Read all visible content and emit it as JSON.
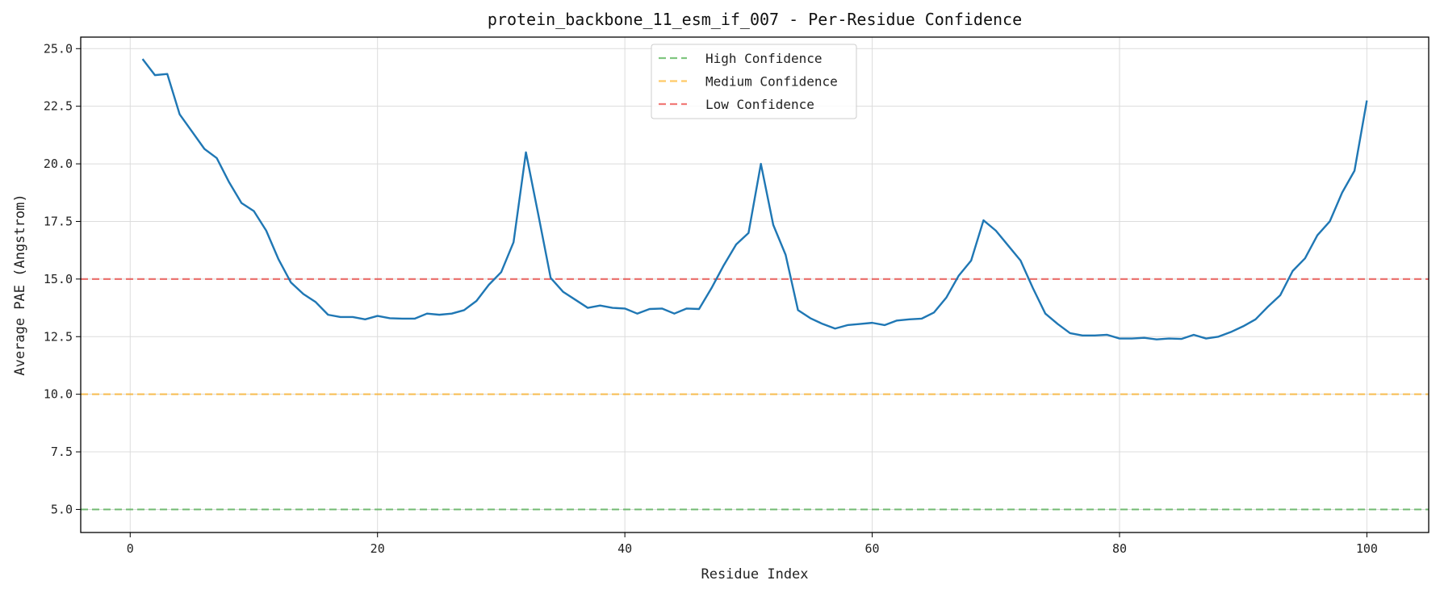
{
  "chart_data": {
    "type": "line",
    "title": "protein_backbone_11_esm_if_007 - Per-Residue Confidence",
    "xlabel": "Residue Index",
    "ylabel": "Average PAE (Angstrom)",
    "xlim": [
      -4,
      105
    ],
    "ylim": [
      4.0,
      25.5
    ],
    "xticks": [
      0,
      20,
      40,
      60,
      80,
      100
    ],
    "xtick_labels": [
      "0",
      "20",
      "40",
      "60",
      "80",
      "100"
    ],
    "yticks": [
      5.0,
      7.5,
      10.0,
      12.5,
      15.0,
      17.5,
      20.0,
      22.5,
      25.0
    ],
    "ytick_labels": [
      "5.0",
      "7.5",
      "10.0",
      "12.5",
      "15.0",
      "17.5",
      "20.0",
      "22.5",
      "25.0"
    ],
    "grid": true,
    "legend_position": "top-center",
    "series": [
      {
        "color": "#1f77b4",
        "x": [
          1,
          2,
          3,
          4,
          5,
          6,
          7,
          8,
          9,
          10,
          11,
          12,
          13,
          14,
          15,
          16,
          17,
          18,
          19,
          20,
          21,
          22,
          23,
          24,
          25,
          26,
          27,
          28,
          29,
          30,
          31,
          32,
          33,
          34,
          35,
          36,
          37,
          38,
          39,
          40,
          41,
          42,
          43,
          44,
          45,
          46,
          47,
          48,
          49,
          50,
          51,
          52,
          53,
          54,
          55,
          56,
          57,
          58,
          59,
          60,
          61,
          62,
          63,
          64,
          65,
          66,
          67,
          68,
          69,
          70,
          71,
          72,
          73,
          74,
          75,
          76,
          77,
          78,
          79,
          80,
          81,
          82,
          83,
          84,
          85,
          86,
          87,
          88,
          89,
          90,
          91,
          92,
          93,
          94,
          95,
          96,
          97,
          98,
          99,
          100
        ],
        "y": [
          24.55,
          23.85,
          23.9,
          22.15,
          21.4,
          20.65,
          20.25,
          19.2,
          18.3,
          17.95,
          17.1,
          15.85,
          14.85,
          14.35,
          14.0,
          13.45,
          13.35,
          13.35,
          13.25,
          13.4,
          13.3,
          13.28,
          13.28,
          13.5,
          13.45,
          13.5,
          13.65,
          14.05,
          14.75,
          15.3,
          16.6,
          20.5,
          17.8,
          15.05,
          14.45,
          14.1,
          13.75,
          13.85,
          13.75,
          13.72,
          13.5,
          13.7,
          13.72,
          13.5,
          13.72,
          13.7,
          14.6,
          15.6,
          16.5,
          17.0,
          20.0,
          17.35,
          16.05,
          13.65,
          13.3,
          13.05,
          12.85,
          13.0,
          13.05,
          13.1,
          13.0,
          13.2,
          13.25,
          13.28,
          13.55,
          14.2,
          15.15,
          15.8,
          17.55,
          17.1,
          16.45,
          15.8,
          14.6,
          13.5,
          13.05,
          12.65,
          12.55,
          12.55,
          12.58,
          12.42,
          12.42,
          12.45,
          12.38,
          12.42,
          12.4,
          12.58,
          12.42,
          12.5,
          12.7,
          12.95,
          13.25,
          13.8,
          14.3,
          15.35,
          15.9,
          16.9,
          17.5,
          18.75,
          19.7,
          22.75
        ]
      }
    ],
    "reference_lines": [
      {
        "name": "High Confidence",
        "y": 5.0,
        "color": "#2ca02c"
      },
      {
        "name": "Medium Confidence",
        "y": 10.0,
        "color": "#ffa500"
      },
      {
        "name": "Low Confidence",
        "y": 15.0,
        "color": "#e8231e"
      }
    ]
  }
}
